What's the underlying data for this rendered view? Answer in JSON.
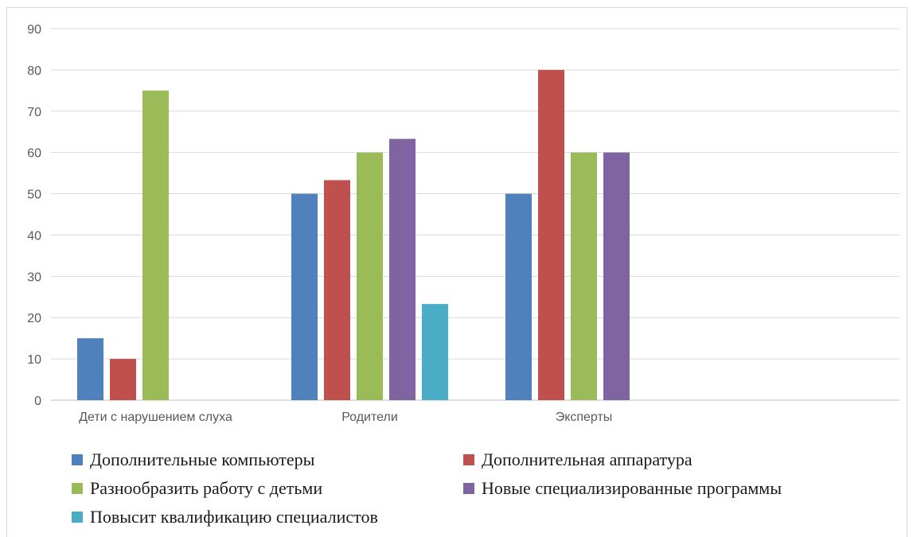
{
  "chart_data": {
    "type": "bar",
    "categories": [
      "Дети с нарушением слуха",
      "Родители",
      "Эксперты"
    ],
    "ylim": [
      0,
      90
    ],
    "yticks": [
      0,
      10,
      20,
      30,
      40,
      50,
      60,
      70,
      80,
      90
    ],
    "grid": true,
    "legend_position": "bottom",
    "series": [
      {
        "name": "Дополнительные компьютеры",
        "color": "#4f81bd",
        "values": [
          15,
          50,
          50
        ]
      },
      {
        "name": "Дополнительная аппаратура",
        "color": "#c0504d",
        "values": [
          10,
          53.3,
          80
        ]
      },
      {
        "name": "Разнообразить работу с детьми",
        "color": "#9bbb59",
        "values": [
          75,
          60,
          60
        ]
      },
      {
        "name": "Новые специализированные программы",
        "color": "#8064a2",
        "values": [
          0,
          63.3,
          60
        ]
      },
      {
        "name": "Повысит квалификацию специалистов",
        "color": "#4bacc6",
        "values": [
          0,
          23.3,
          0
        ]
      }
    ]
  }
}
